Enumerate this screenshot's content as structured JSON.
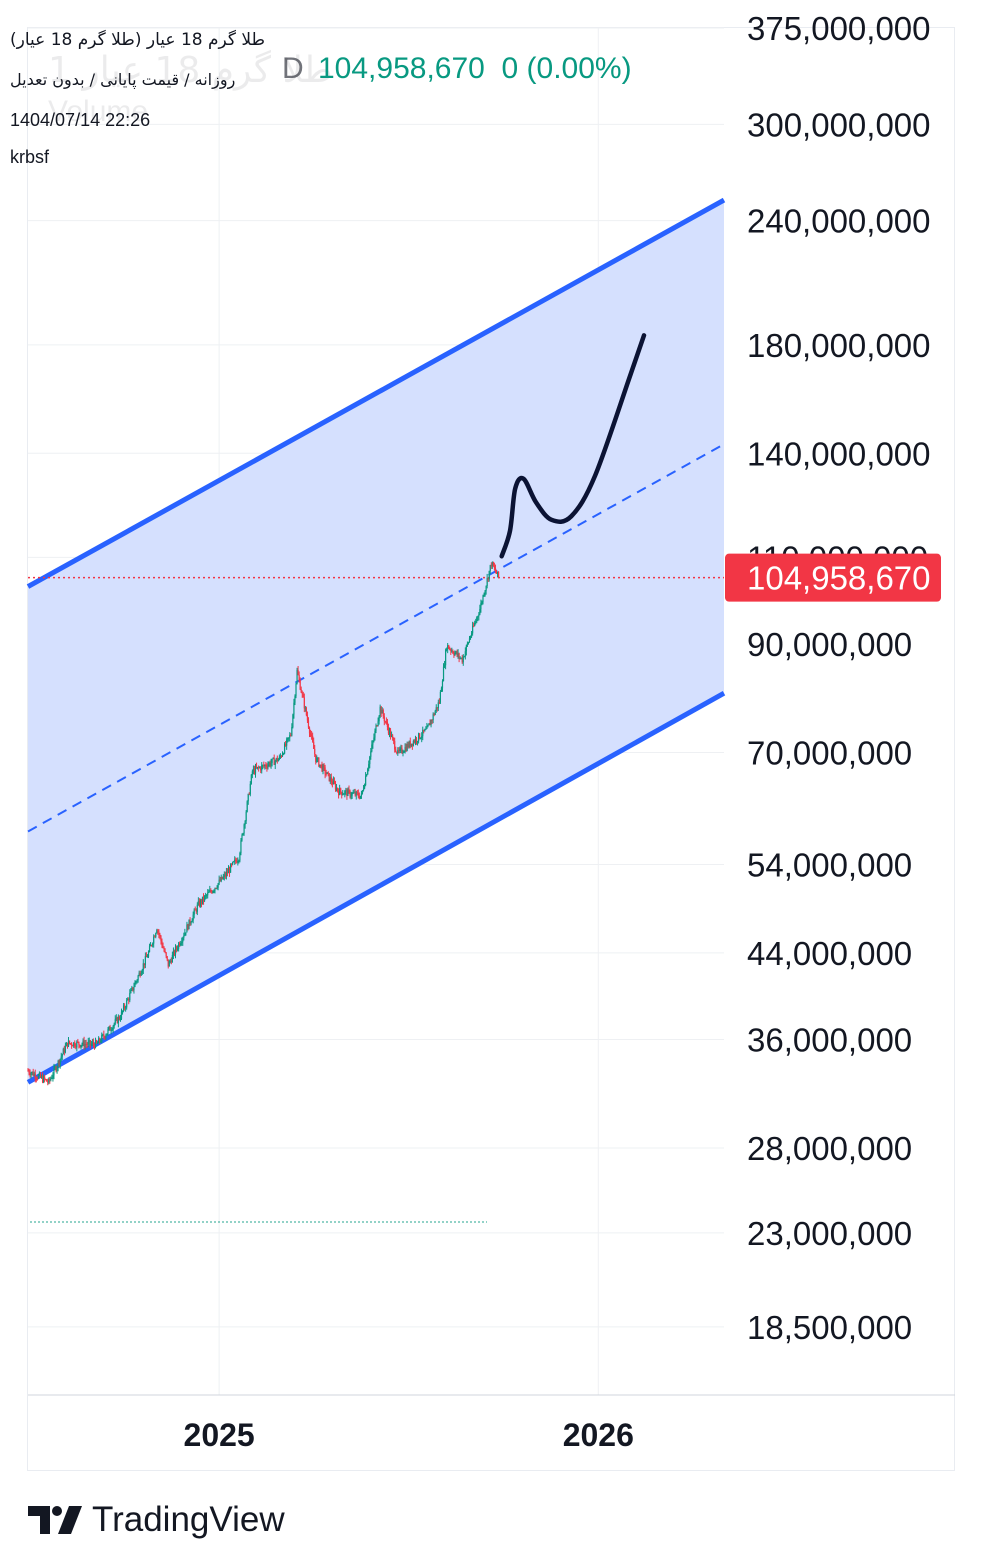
{
  "header": {
    "symbol_title": "طلا گرم 18 عیار (طلا گرم 18 عیار)",
    "symbol_sub": "روزانه / قیمت پایانی / بدون تعدیل",
    "timestamp": "1404/07/14 22:26",
    "username": "krbsf",
    "ghost_title": "طلا گرم 18 عیار 1",
    "ghost_volume": "Volume",
    "interval_letter": "D",
    "last_price": "104,958,670",
    "change": "0 (0.00%)"
  },
  "colors": {
    "channel_line": "#2962ff",
    "channel_fill": "#d3defe",
    "price_label_bg": "#f23645",
    "up_candle": "#089981",
    "down_candle": "#f23645",
    "drawing": "#0b1334",
    "grid": "#eef0f3"
  },
  "brand": {
    "name": "TradingView",
    "logo_icon": "tradingview-logo-icon"
  },
  "chart_data": {
    "type": "candlestick",
    "y_scale": "log",
    "ylim": [
      15800000,
      375000000
    ],
    "y_ticks": [
      {
        "value": 375000000,
        "label": "375,000,000"
      },
      {
        "value": 300000000,
        "label": "300,000,000"
      },
      {
        "value": 240000000,
        "label": "240,000,000"
      },
      {
        "value": 180000000,
        "label": "180,000,000"
      },
      {
        "value": 140000000,
        "label": "140,000,000"
      },
      {
        "value": 110000000,
        "label": "110,000,000"
      },
      {
        "value": 90000000,
        "label": "90,000,000"
      },
      {
        "value": 70000000,
        "label": "70,000,000"
      },
      {
        "value": 54000000,
        "label": "54,000,000"
      },
      {
        "value": 44000000,
        "label": "44,000,000"
      },
      {
        "value": 36000000,
        "label": "36,000,000"
      },
      {
        "value": 28000000,
        "label": "28,000,000"
      },
      {
        "value": 23000000,
        "label": "23,000,000"
      },
      {
        "value": 18500000,
        "label": "18,500,000"
      }
    ],
    "x_ticks": [
      {
        "date": "2025-01-01",
        "label": "2025"
      },
      {
        "date": "2026-01-01",
        "label": "2026"
      }
    ],
    "x_range": [
      "2024-07-01",
      "2026-05-02"
    ],
    "last_price": {
      "value": 104958670,
      "label": "104,958,670"
    },
    "price_path": [
      {
        "date": "2024-07-01",
        "value": 33500000
      },
      {
        "date": "2024-07-21",
        "value": 32600000
      },
      {
        "date": "2024-08-08",
        "value": 35700000
      },
      {
        "date": "2024-09-05",
        "value": 35600000
      },
      {
        "date": "2024-09-28",
        "value": 38000000
      },
      {
        "date": "2024-10-25",
        "value": 44000000
      },
      {
        "date": "2024-11-02",
        "value": 46700000
      },
      {
        "date": "2024-11-13",
        "value": 42800000
      },
      {
        "date": "2024-12-12",
        "value": 49200000
      },
      {
        "date": "2025-01-06",
        "value": 52500000
      },
      {
        "date": "2025-01-20",
        "value": 55000000
      },
      {
        "date": "2025-02-02",
        "value": 67000000
      },
      {
        "date": "2025-02-28",
        "value": 69000000
      },
      {
        "date": "2025-03-11",
        "value": 73000000
      },
      {
        "date": "2025-03-17",
        "value": 84500000
      },
      {
        "date": "2025-04-04",
        "value": 69000000
      },
      {
        "date": "2025-04-26",
        "value": 64000000
      },
      {
        "date": "2025-05-18",
        "value": 63300000
      },
      {
        "date": "2025-06-05",
        "value": 77600000
      },
      {
        "date": "2025-06-22",
        "value": 69800000
      },
      {
        "date": "2025-07-20",
        "value": 73700000
      },
      {
        "date": "2025-08-01",
        "value": 78800000
      },
      {
        "date": "2025-08-08",
        "value": 89700000
      },
      {
        "date": "2025-08-23",
        "value": 86800000
      },
      {
        "date": "2025-09-09",
        "value": 97700000
      },
      {
        "date": "2025-09-20",
        "value": 108500000
      },
      {
        "date": "2025-09-27",
        "value": 104958670
      }
    ],
    "channel": {
      "upper": [
        {
          "date": "2024-07-01",
          "value": 102800000
        },
        {
          "date": "2026-05-02",
          "value": 251700000
        }
      ],
      "mid": [
        {
          "date": "2024-07-01",
          "value": 58300000
        },
        {
          "date": "2026-05-02",
          "value": 143000000
        }
      ],
      "lower": [
        {
          "date": "2024-07-01",
          "value": 32600000
        },
        {
          "date": "2026-05-02",
          "value": 80300000
        }
      ]
    },
    "projection_path": [
      {
        "date": "2025-09-30",
        "value": 110300000
      },
      {
        "date": "2025-10-08",
        "value": 117000000
      },
      {
        "date": "2025-10-13",
        "value": 129000000
      },
      {
        "date": "2025-10-21",
        "value": 132000000
      },
      {
        "date": "2025-11-02",
        "value": 125000000
      },
      {
        "date": "2025-11-17",
        "value": 120000000
      },
      {
        "date": "2025-12-06",
        "value": 121000000
      },
      {
        "date": "2025-12-29",
        "value": 133000000
      },
      {
        "date": "2026-02-01",
        "value": 168000000
      },
      {
        "date": "2026-02-14",
        "value": 184000000
      }
    ]
  }
}
